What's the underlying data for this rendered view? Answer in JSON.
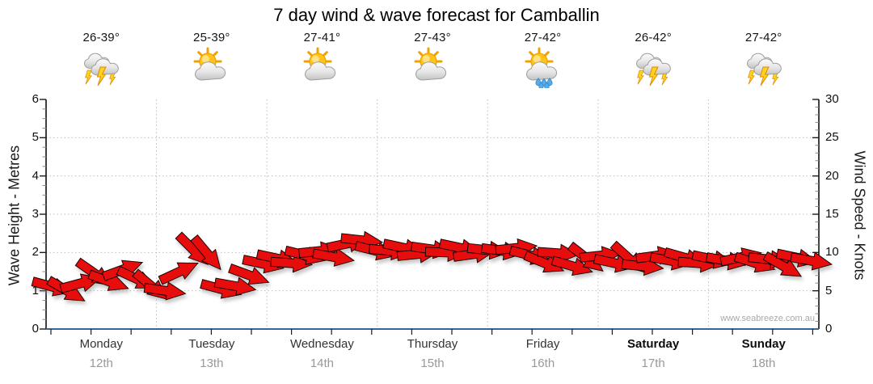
{
  "title": "7 day wind & wave forecast for Camballin",
  "watermark": "www.seabreeze.com.au",
  "days": [
    {
      "name": "Monday",
      "date": "12th",
      "temp": "26-39°",
      "icon": "storm",
      "bold": false
    },
    {
      "name": "Tuesday",
      "date": "13th",
      "temp": "25-39°",
      "icon": "partly-cloudy",
      "bold": false
    },
    {
      "name": "Wednesday",
      "date": "14th",
      "temp": "27-41°",
      "icon": "partly-cloudy",
      "bold": false
    },
    {
      "name": "Thursday",
      "date": "15th",
      "temp": "27-43°",
      "icon": "partly-cloudy",
      "bold": false
    },
    {
      "name": "Friday",
      "date": "16th",
      "temp": "27-42°",
      "icon": "sun-showers",
      "bold": false
    },
    {
      "name": "Saturday",
      "date": "17th",
      "temp": "26-42°",
      "icon": "storm",
      "bold": true
    },
    {
      "name": "Sunday",
      "date": "18th",
      "temp": "27-42°",
      "icon": "storm",
      "bold": true
    }
  ],
  "axes": {
    "left": {
      "title": "Wave Height - Metres",
      "ticks": [
        0,
        1,
        2,
        3,
        4,
        5,
        6
      ],
      "range": [
        0,
        6
      ]
    },
    "right": {
      "title": "Wind Speed - Knots",
      "ticks": [
        0,
        5,
        10,
        15,
        20,
        25,
        30
      ],
      "range": [
        0,
        30
      ]
    }
  },
  "colors": {
    "arrow_red": "#e81111",
    "arrow_outline": "#1a0000",
    "x_axis_blue": "#336699",
    "grid_gray": "#bdbdbd",
    "tick_black": "#1c1c1c",
    "minor_tick_gray": "#8c8c8c",
    "date_gray": "#999999",
    "watermark_gray": "#a8a8a8"
  },
  "chart_data": {
    "type": "scatter",
    "marker": "wind-arrow",
    "title": "7 day wind & wave forecast for Camballin",
    "categories": [
      "Monday 12th",
      "Tuesday 13th",
      "Wednesday 14th",
      "Thursday 15th",
      "Friday 16th",
      "Saturday 17th",
      "Sunday 18th"
    ],
    "ylabel_left": "Wave Height - Metres",
    "ylim_left": [
      0,
      6
    ],
    "ylabel_right": "Wind Speed - Knots",
    "ylim_right": [
      0,
      30
    ],
    "grid": true,
    "n_samples": 55,
    "x_unit": "55 samples evenly spaced across the 7 days",
    "series": [
      {
        "name": "Wind speed & direction (knots, arrows)",
        "speeds_kn": [
          5.5,
          5.0,
          6.0,
          7.2,
          6.2,
          7.8,
          6.5,
          5.6,
          5.0,
          7.5,
          10.3,
          9.8,
          5.2,
          5.6,
          7.0,
          8.5,
          9.2,
          8.6,
          9.6,
          10.2,
          9.4,
          11.2,
          11.6,
          10.2,
          10.2,
          10.6,
          9.8,
          10.4,
          10.0,
          10.6,
          9.8,
          10.3,
          10.2,
          10.6,
          9.6,
          8.6,
          9.9,
          8.2,
          9.2,
          9.6,
          8.6,
          9.2,
          8.2,
          9.6,
          8.9,
          9.3,
          8.6,
          9.1,
          8.9,
          9.4,
          8.6,
          9.1,
          8.2,
          9.3,
          8.9
        ],
        "dirs_deg_clockwise_from_east": [
          15,
          30,
          -15,
          35,
          20,
          -20,
          25,
          40,
          8,
          -25,
          45,
          50,
          15,
          10,
          20,
          12,
          12,
          4,
          14,
          -6,
          10,
          -12,
          6,
          14,
          6,
          12,
          -6,
          8,
          2,
          12,
          -8,
          6,
          8,
          -6,
          14,
          22,
          4,
          16,
          38,
          -6,
          12,
          42,
          6,
          -8,
          10,
          16,
          4,
          12,
          10,
          -12,
          18,
          6,
          30,
          12,
          10
        ]
      }
    ]
  }
}
